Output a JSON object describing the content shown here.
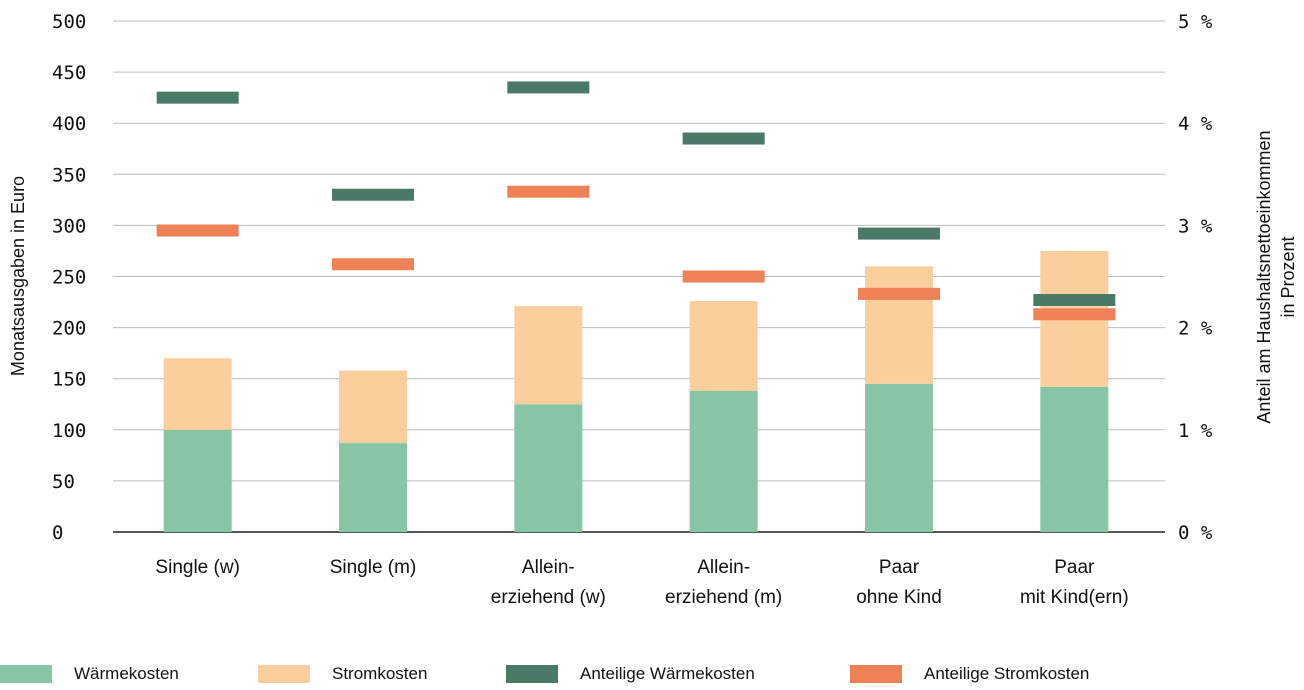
{
  "chart_data": {
    "type": "bar",
    "categories": [
      [
        "Single (w)"
      ],
      [
        "Single (m)"
      ],
      [
        "Allein-",
        "erziehend (w)"
      ],
      [
        "Allein-",
        "erziehend (m)"
      ],
      [
        "Paar",
        "ohne Kind"
      ],
      [
        "Paar",
        "mit Kind(ern)"
      ]
    ],
    "ylabel": "Monatsausgaben in Euro",
    "ylabel_right": [
      "Anteil am Haushaltsnettoeinkommen",
      "in Prozent"
    ],
    "ylim": [
      0,
      500
    ],
    "ylim_right": [
      0,
      5
    ],
    "y_ticks": [
      0,
      50,
      100,
      150,
      200,
      250,
      300,
      350,
      400,
      450,
      500
    ],
    "y_ticks_right": [
      "0 %",
      "1 %",
      "2 %",
      "3 %",
      "4 %",
      "5 %"
    ],
    "grid": true,
    "legend_position": "bottom",
    "stacked_series": [
      {
        "name": "Wärmekosten",
        "color": "#86c6a6",
        "values": [
          100,
          87,
          125,
          138,
          145,
          142
        ]
      },
      {
        "name": "Stromkosten",
        "color": "#fbcf9c",
        "values": [
          70,
          71,
          96,
          88,
          115,
          133
        ]
      }
    ],
    "marker_series": [
      {
        "name": "Anteilige Wärmekosten",
        "color": "#4a7a66",
        "axis": "right",
        "values": [
          4.25,
          3.3,
          4.35,
          3.85,
          2.92,
          2.27
        ]
      },
      {
        "name": "Anteilige Stromkosten",
        "color": "#ee8155",
        "axis": "right",
        "values": [
          2.95,
          2.62,
          3.33,
          2.5,
          2.33,
          2.13
        ]
      }
    ]
  }
}
